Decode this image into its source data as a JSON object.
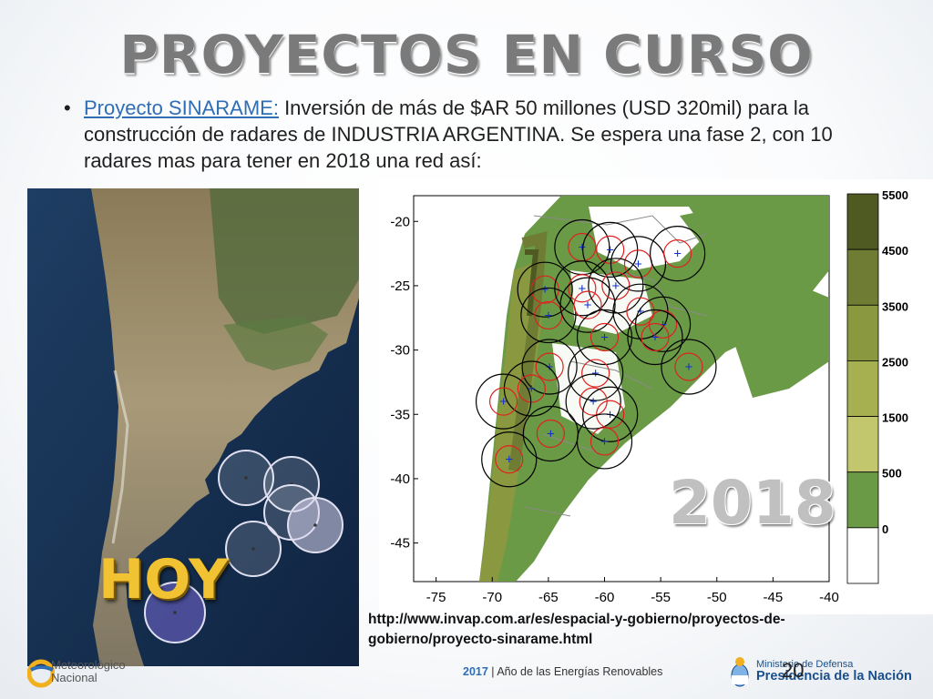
{
  "slide": {
    "title": "PROYECTOS EN CURSO",
    "bullet_char": "•",
    "bullet_link": "Proyecto SINARAME:",
    "bullet_text": " Inversión de más de $AR 50 millones (USD 320mil) para la construcción de radares de INDUSTRIA ARGENTINA. Se espera una fase 2,  con 10 radares mas para tener en 2018 una red así:",
    "hoy_label": "HOY",
    "year_label": "2018",
    "source_url": "http://www.invap.com.ar/es/espacial-y-gobierno/proyectos-de-gobierno/proyecto-sinarame.html"
  },
  "map": {
    "x_ticks": [
      "-75",
      "-70",
      "-65",
      "-60",
      "-55",
      "-50",
      "-45",
      "-40"
    ],
    "y_ticks": [
      "-20",
      "-25",
      "-30",
      "-35",
      "-40",
      "-45"
    ],
    "colorbar_labels": [
      "5500",
      "4500",
      "3500",
      "2500",
      "1500",
      "500",
      "0"
    ],
    "colorbar_colors": [
      "#4f5a22",
      "#6f7c34",
      "#8a9840",
      "#a6b050",
      "#c2c76e",
      "#6a9a46",
      "#ffffff"
    ],
    "radar_marker": "+",
    "radars_2018": [
      {
        "lon": -62.0,
        "lat": -22.0
      },
      {
        "lon": -59.5,
        "lat": -22.2
      },
      {
        "lon": -57.0,
        "lat": -23.3
      },
      {
        "lon": -53.5,
        "lat": -22.5
      },
      {
        "lon": -65.3,
        "lat": -25.3
      },
      {
        "lon": -62.0,
        "lat": -25.2
      },
      {
        "lon": -59.0,
        "lat": -25.0
      },
      {
        "lon": -65.0,
        "lat": -27.3
      },
      {
        "lon": -61.5,
        "lat": -26.5
      },
      {
        "lon": -56.8,
        "lat": -27.0
      },
      {
        "lon": -54.8,
        "lat": -28.0
      },
      {
        "lon": -60.0,
        "lat": -29.0
      },
      {
        "lon": -55.5,
        "lat": -29.0
      },
      {
        "lon": -64.9,
        "lat": -31.3
      },
      {
        "lon": -60.8,
        "lat": -31.8
      },
      {
        "lon": -52.5,
        "lat": -31.3
      },
      {
        "lon": -66.5,
        "lat": -33.0
      },
      {
        "lon": -69.0,
        "lat": -34.0
      },
      {
        "lon": -61.0,
        "lat": -34.0
      },
      {
        "lon": -59.5,
        "lat": -35.0
      },
      {
        "lon": -64.8,
        "lat": -36.5
      },
      {
        "lon": -60.0,
        "lat": -37.1
      },
      {
        "lon": -68.5,
        "lat": -38.5
      }
    ]
  },
  "satellite": {
    "radars_today": [
      {
        "cx": 240,
        "cy": 318,
        "r": 30,
        "fill": false
      },
      {
        "cx": 290,
        "cy": 325,
        "r": 30,
        "fill": false
      },
      {
        "cx": 290,
        "cy": 356,
        "r": 30,
        "fill": false
      },
      {
        "cx": 316,
        "cy": 370,
        "r": 30,
        "fill": true
      },
      {
        "cx": 248,
        "cy": 396,
        "r": 30,
        "fill": false
      },
      {
        "cx": 162,
        "cy": 466,
        "r": 33,
        "fill": true
      }
    ]
  },
  "footer": {
    "smn_line1": "Meteorológico",
    "smn_line2": "Nacional",
    "year": "2017",
    "slogan": " | Año de las Energías Renovables",
    "page_number": "20",
    "ministry_line1": "Ministerio de Defensa",
    "ministry_line2": "Presidencia de la Nación"
  }
}
